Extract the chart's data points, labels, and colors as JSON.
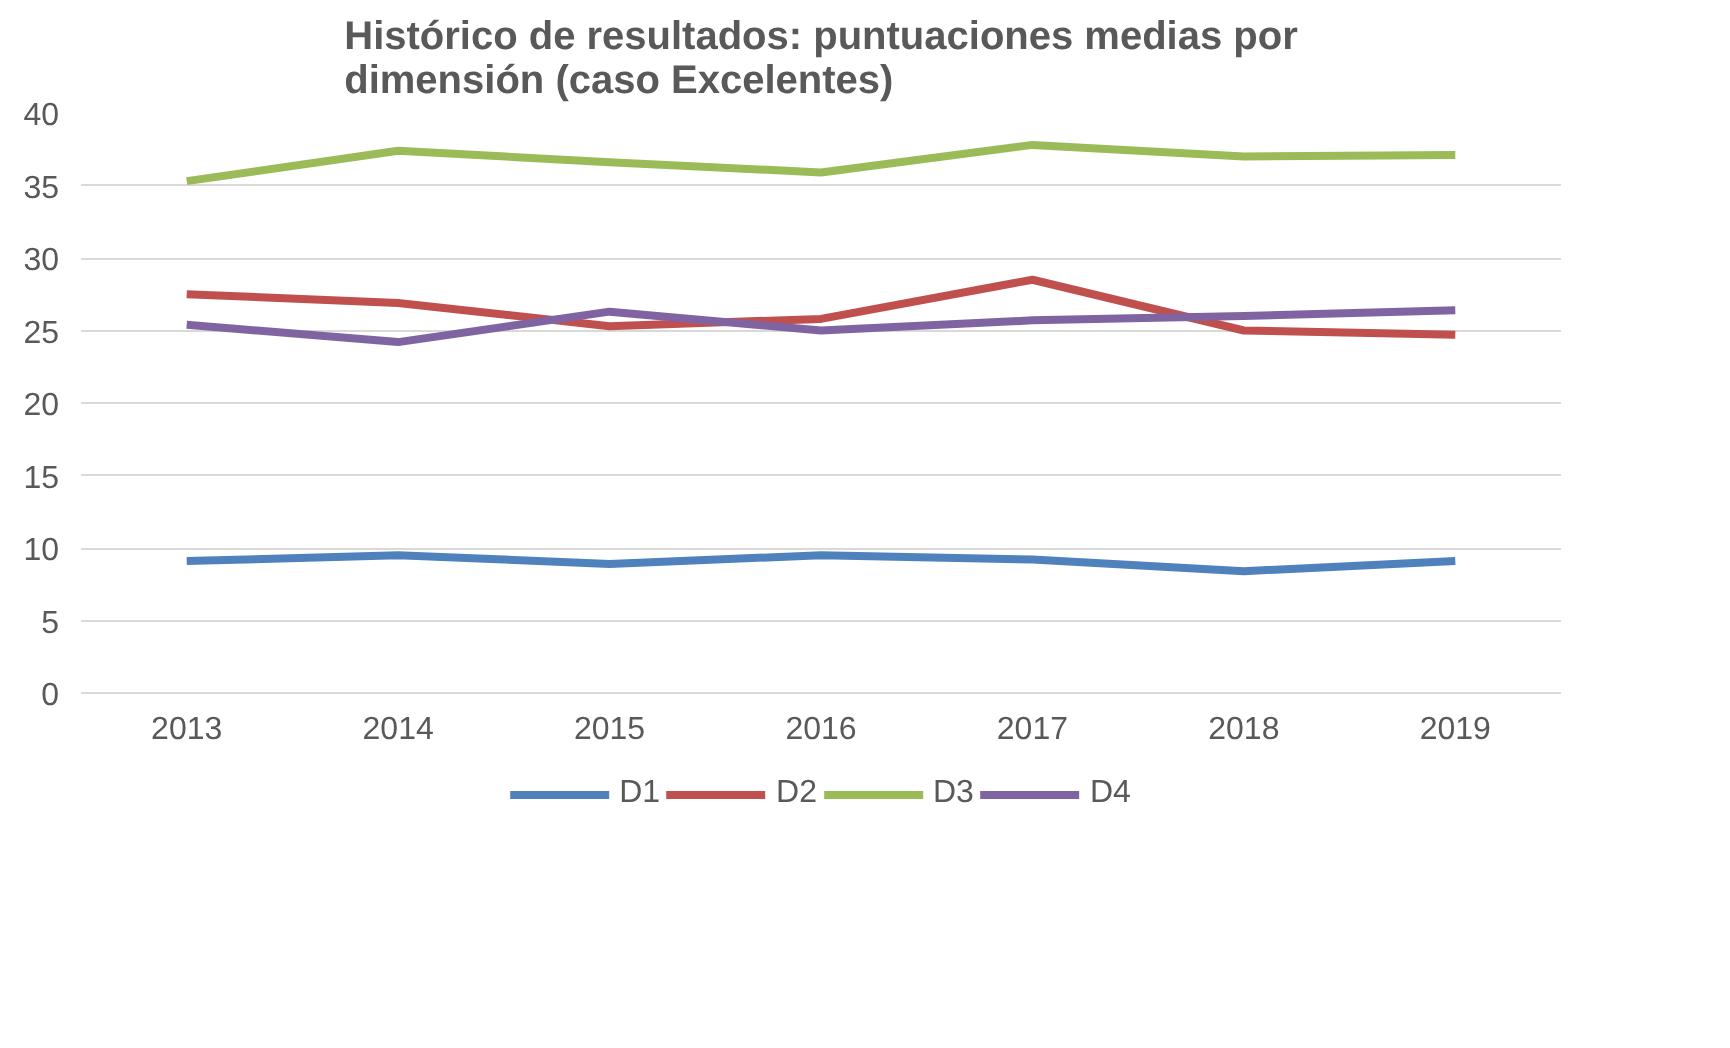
{
  "chart_data": {
    "type": "line",
    "title": "Histórico de resultados: puntuaciones medias por dimensión (caso Excelentes)",
    "categories": [
      "2013",
      "2014",
      "2015",
      "2016",
      "2017",
      "2018",
      "2019"
    ],
    "series": [
      {
        "name": "D1",
        "color": "#4f81bd",
        "values": [
          9.1,
          9.5,
          8.9,
          9.5,
          9.2,
          8.4,
          9.1
        ]
      },
      {
        "name": "D2",
        "color": "#c0504d",
        "values": [
          27.5,
          26.9,
          25.3,
          25.8,
          28.5,
          25.0,
          24.7
        ]
      },
      {
        "name": "D3",
        "color": "#9bbb59",
        "values": [
          35.3,
          37.4,
          36.6,
          35.9,
          37.8,
          37.0,
          37.1
        ]
      },
      {
        "name": "D4",
        "color": "#8064a2",
        "values": [
          25.4,
          24.2,
          26.3,
          25.0,
          25.7,
          26.0,
          26.4
        ]
      }
    ],
    "ylim": [
      0,
      40
    ],
    "yticks": [
      0,
      5,
      10,
      15,
      20,
      25,
      30,
      35,
      40
    ],
    "grid": "y",
    "legend": "bottom",
    "marker": "none",
    "line_style": "solid"
  }
}
